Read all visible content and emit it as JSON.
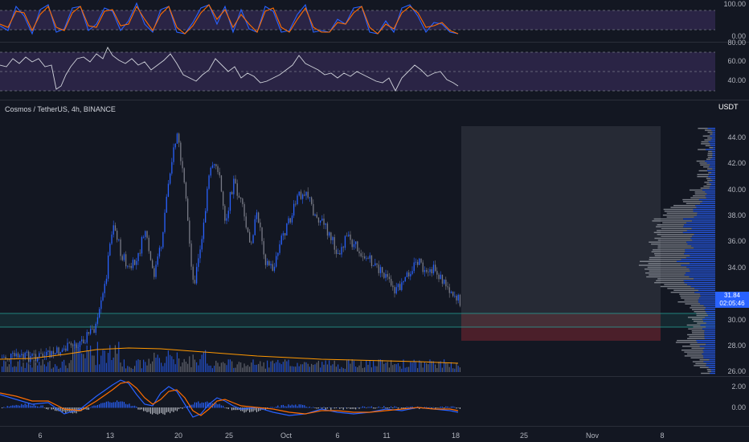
{
  "chart": {
    "title": "Cosmos / TetherUS, 4h, BINANCE",
    "unit": "USDT",
    "last_price": "31.84",
    "countdown": "02:05:46"
  },
  "stoch_axis": [
    "100.00",
    "0.00"
  ],
  "rsi_axis": [
    "80.00",
    "60.00",
    "40.00"
  ],
  "price_axis": [
    "44.00",
    "42.00",
    "40.00",
    "38.00",
    "36.00",
    "34.00",
    "30.00",
    "28.00",
    "26.00"
  ],
  "macd_axis": [
    "2.00",
    "0.00"
  ],
  "x_axis": [
    "6",
    "13",
    "20",
    "25",
    "Oct",
    "6",
    "11",
    "18",
    "25",
    "Nov",
    "8"
  ],
  "colors": {
    "background": "#131722",
    "up": "#2962ff",
    "down": "#787b86",
    "stoch_k": "#2962ff",
    "stoch_d": "#ff6d00",
    "rsi_band": "#7e57c2",
    "zone": "#26a69a",
    "stop": "#f23645"
  }
}
